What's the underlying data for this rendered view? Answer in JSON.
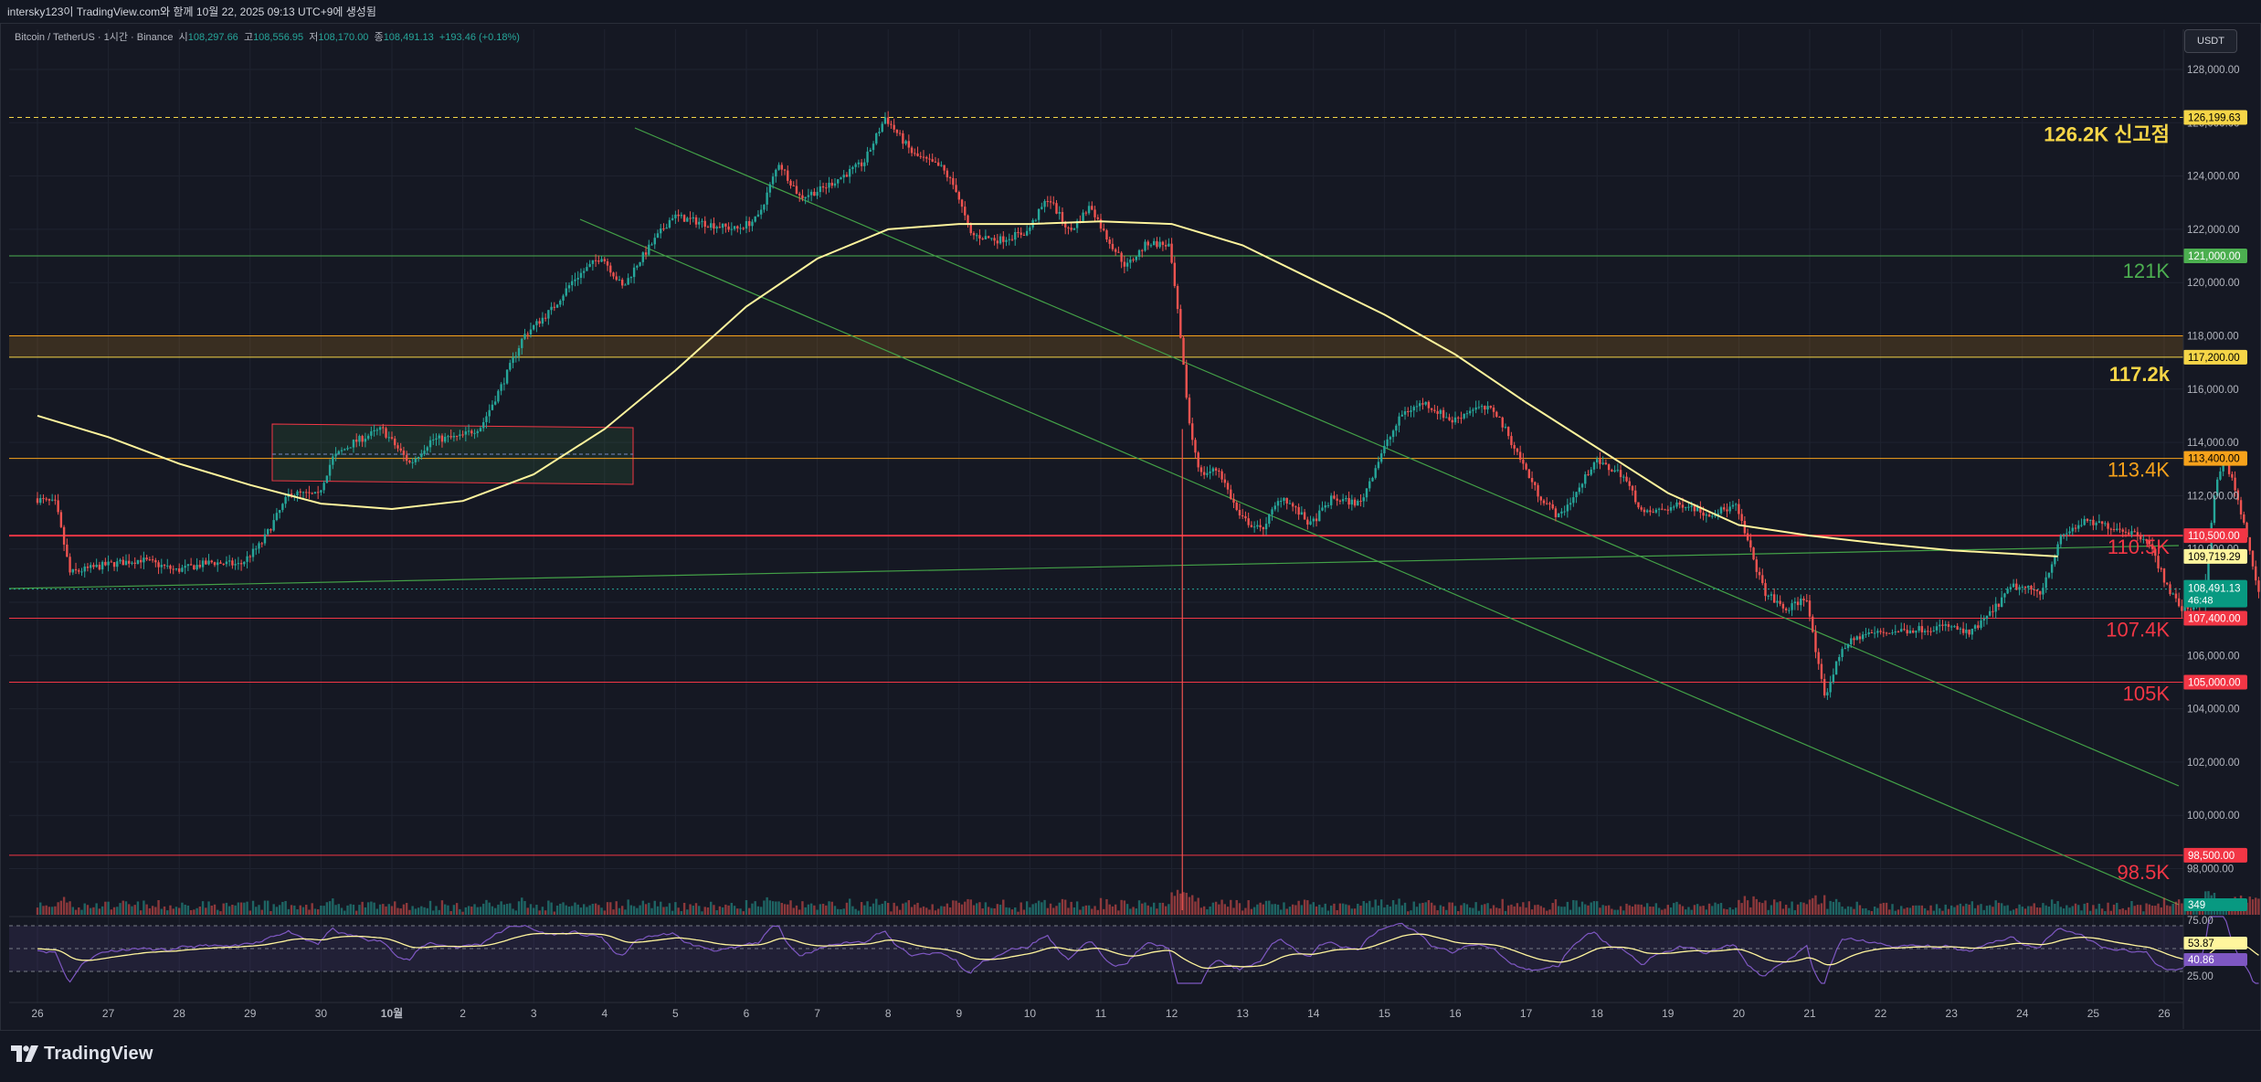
{
  "header": {
    "created_by": "intersky123이 TradingView.com와 함께 10월 22, 2025 09:13 UTC+9에 생성됨"
  },
  "symbol": {
    "pair": "Bitcoin / TetherUS · 1시간 · Binance",
    "open_label": "시",
    "open": "108,297.66",
    "high_label": "고",
    "high": "108,556.95",
    "low_label": "저",
    "low": "108,170.00",
    "close_label": "종",
    "close": "108,491.13",
    "change": "+193.46 (+0.18%)"
  },
  "toolbar": {
    "currency": "USDT"
  },
  "footer": {
    "brand": "TradingView"
  },
  "colors": {
    "background": "#151823",
    "bull": "#26a69a",
    "bear": "#ef5350",
    "ma": "#fff59d",
    "rsi": "#7e57c2",
    "support_red": "#f23645",
    "resistance_orange": "#f7a21b",
    "level_green": "#4caf50",
    "trend_green": "#43a047",
    "ath_yellow": "#f5d547"
  },
  "chart_data": {
    "type": "candlestick",
    "timeframe": "1시간",
    "y_axis": {
      "ticks": [
        "128,000.00",
        "126,000.00",
        "124,000.00",
        "122,000.00",
        "120,000.00",
        "118,000.00",
        "116,000.00",
        "114,000.00",
        "112,000.00",
        "110,000.00",
        "108,000.00",
        "106,000.00",
        "104,000.00",
        "102,000.00",
        "100,000.00",
        "98,000.00"
      ],
      "ylim": [
        97600,
        129200
      ]
    },
    "x_axis": {
      "ticks": [
        "26",
        "27",
        "28",
        "29",
        "30",
        "10월",
        "2",
        "3",
        "4",
        "5",
        "6",
        "7",
        "8",
        "9",
        "10",
        "11",
        "12",
        "13",
        "14",
        "15",
        "16",
        "17",
        "18",
        "19",
        "20",
        "21",
        "22",
        "23",
        "24",
        "25",
        "26"
      ]
    },
    "price_path": [
      {
        "d": 0,
        "v": 111900
      },
      {
        "d": 0.3,
        "v": 111700
      },
      {
        "d": 0.5,
        "v": 109100
      },
      {
        "d": 1,
        "v": 109400
      },
      {
        "d": 1.5,
        "v": 109600
      },
      {
        "d": 2,
        "v": 109200
      },
      {
        "d": 2.5,
        "v": 109500
      },
      {
        "d": 2.9,
        "v": 109400
      },
      {
        "d": 3.2,
        "v": 110200
      },
      {
        "d": 3.6,
        "v": 112100
      },
      {
        "d": 4,
        "v": 112000
      },
      {
        "d": 4.2,
        "v": 113400
      },
      {
        "d": 4.5,
        "v": 114000
      },
      {
        "d": 4.9,
        "v": 114500
      },
      {
        "d": 5.3,
        "v": 113200
      },
      {
        "d": 5.6,
        "v": 114100
      },
      {
        "d": 6,
        "v": 114200
      },
      {
        "d": 6.3,
        "v": 114600
      },
      {
        "d": 6.6,
        "v": 116200
      },
      {
        "d": 6.9,
        "v": 118000
      },
      {
        "d": 7.3,
        "v": 119000
      },
      {
        "d": 7.6,
        "v": 120100
      },
      {
        "d": 8,
        "v": 121000
      },
      {
        "d": 8.3,
        "v": 119800
      },
      {
        "d": 8.5,
        "v": 120700
      },
      {
        "d": 9,
        "v": 122500
      },
      {
        "d": 9.5,
        "v": 122200
      },
      {
        "d": 9.9,
        "v": 122000
      },
      {
        "d": 10.2,
        "v": 122400
      },
      {
        "d": 10.5,
        "v": 124500
      },
      {
        "d": 10.8,
        "v": 123200
      },
      {
        "d": 11.1,
        "v": 123500
      },
      {
        "d": 11.4,
        "v": 124000
      },
      {
        "d": 11.7,
        "v": 124500
      },
      {
        "d": 12,
        "v": 126199
      },
      {
        "d": 12.4,
        "v": 124800
      },
      {
        "d": 12.8,
        "v": 124300
      },
      {
        "d": 13,
        "v": 123500
      },
      {
        "d": 13.2,
        "v": 121800
      },
      {
        "d": 13.6,
        "v": 121600
      },
      {
        "d": 14,
        "v": 121900
      },
      {
        "d": 14.3,
        "v": 123200
      },
      {
        "d": 14.6,
        "v": 121900
      },
      {
        "d": 14.9,
        "v": 122900
      },
      {
        "d": 15.1,
        "v": 121800
      },
      {
        "d": 15.4,
        "v": 120600
      },
      {
        "d": 15.7,
        "v": 121500
      },
      {
        "d": 16,
        "v": 121400
      },
      {
        "d": 16.1,
        "v": 119500
      },
      {
        "d": 16.2,
        "v": 117000
      },
      {
        "d": 16.3,
        "v": 114500
      },
      {
        "d": 16.45,
        "v": 112800
      },
      {
        "d": 16.7,
        "v": 113000
      },
      {
        "d": 17,
        "v": 111200
      },
      {
        "d": 17.3,
        "v": 110700
      },
      {
        "d": 17.6,
        "v": 112000
      },
      {
        "d": 18,
        "v": 110900
      },
      {
        "d": 18.3,
        "v": 111900
      },
      {
        "d": 18.7,
        "v": 111700
      },
      {
        "d": 19,
        "v": 113600
      },
      {
        "d": 19.3,
        "v": 115100
      },
      {
        "d": 19.6,
        "v": 115500
      },
      {
        "d": 20,
        "v": 114800
      },
      {
        "d": 20.3,
        "v": 115300
      },
      {
        "d": 20.6,
        "v": 115200
      },
      {
        "d": 20.9,
        "v": 113700
      },
      {
        "d": 21.2,
        "v": 112100
      },
      {
        "d": 21.5,
        "v": 111200
      },
      {
        "d": 21.8,
        "v": 112300
      },
      {
        "d": 22,
        "v": 113300
      },
      {
        "d": 22.4,
        "v": 112800
      },
      {
        "d": 22.7,
        "v": 111300
      },
      {
        "d": 23,
        "v": 111500
      },
      {
        "d": 23.3,
        "v": 111700
      },
      {
        "d": 23.6,
        "v": 111300
      },
      {
        "d": 24,
        "v": 111600
      },
      {
        "d": 24.2,
        "v": 110000
      },
      {
        "d": 24.4,
        "v": 108400
      },
      {
        "d": 24.7,
        "v": 107700
      },
      {
        "d": 25,
        "v": 108200
      },
      {
        "d": 25.1,
        "v": 106500
      },
      {
        "d": 25.25,
        "v": 104400
      },
      {
        "d": 25.5,
        "v": 106300
      },
      {
        "d": 25.8,
        "v": 106800
      },
      {
        "d": 26.2,
        "v": 106900
      },
      {
        "d": 26.6,
        "v": 107000
      },
      {
        "d": 27,
        "v": 107100
      },
      {
        "d": 27.3,
        "v": 106800
      },
      {
        "d": 27.6,
        "v": 107600
      },
      {
        "d": 27.9,
        "v": 108600
      },
      {
        "d": 28.3,
        "v": 108400
      },
      {
        "d": 28.6,
        "v": 110500
      },
      {
        "d": 28.9,
        "v": 111000
      },
      {
        "d": 29.2,
        "v": 110900
      },
      {
        "d": 29.5,
        "v": 110700
      },
      {
        "d": 29.8,
        "v": 110400
      },
      {
        "d": 30.1,
        "v": 108500
      },
      {
        "d": 30.3,
        "v": 107700
      },
      {
        "d": 30.6,
        "v": 108000
      },
      {
        "d": 30.75,
        "v": 112100
      },
      {
        "d": 30.9,
        "v": 113500
      },
      {
        "d": 31.1,
        "v": 111600
      },
      {
        "d": 31.25,
        "v": 110000
      },
      {
        "d": 31.35,
        "v": 108491
      }
    ],
    "current_price": "108,491.13",
    "countdown": "46:48",
    "ma_value": "109,719.29",
    "volume_value": "349",
    "ma_path": [
      {
        "d": 0,
        "v": 115000
      },
      {
        "d": 1,
        "v": 114200
      },
      {
        "d": 2,
        "v": 113200
      },
      {
        "d": 3,
        "v": 112400
      },
      {
        "d": 4,
        "v": 111700
      },
      {
        "d": 5,
        "v": 111500
      },
      {
        "d": 6,
        "v": 111800
      },
      {
        "d": 7,
        "v": 112800
      },
      {
        "d": 8,
        "v": 114500
      },
      {
        "d": 9,
        "v": 116700
      },
      {
        "d": 10,
        "v": 119100
      },
      {
        "d": 11,
        "v": 120900
      },
      {
        "d": 12,
        "v": 122000
      },
      {
        "d": 13,
        "v": 122200
      },
      {
        "d": 14,
        "v": 122200
      },
      {
        "d": 15,
        "v": 122300
      },
      {
        "d": 16,
        "v": 122200
      },
      {
        "d": 17,
        "v": 121400
      },
      {
        "d": 18,
        "v": 120100
      },
      {
        "d": 19,
        "v": 118800
      },
      {
        "d": 20,
        "v": 117300
      },
      {
        "d": 21,
        "v": 115500
      },
      {
        "d": 22,
        "v": 113800
      },
      {
        "d": 23,
        "v": 112100
      },
      {
        "d": 24,
        "v": 110900
      },
      {
        "d": 25,
        "v": 110500
      },
      {
        "d": 26,
        "v": 110200
      },
      {
        "d": 27,
        "v": 109950
      },
      {
        "d": 28.5,
        "v": 109720
      }
    ],
    "levels": [
      {
        "label": "126.2K 신고점",
        "tag": "126,199.63",
        "value": 126199.63,
        "color": "#f5d547",
        "dashed": true
      },
      {
        "label": "121K",
        "tag": "121,000.00",
        "value": 121000,
        "color": "#4caf50"
      },
      {
        "label": "117.2k",
        "tag": "117,200.00",
        "value": 117200,
        "color": "#f5d547"
      },
      {
        "label": "",
        "tag": "",
        "value": 118000,
        "color": "#f7a21b"
      },
      {
        "label": "113.4K",
        "tag": "113,400.00",
        "value": 113400,
        "color": "#f7a21b"
      },
      {
        "label": "110.5K",
        "tag": "110,500.00",
        "value": 110500,
        "color": "#f23645"
      },
      {
        "label": "107.4K",
        "tag": "107,400.00",
        "value": 107400,
        "color": "#f23645"
      },
      {
        "label": "105K",
        "tag": "105,000.00",
        "value": 105000,
        "color": "#f23645"
      },
      {
        "label": "98.5K",
        "tag": "98,500.00",
        "value": 98500,
        "color": "#f23645"
      }
    ],
    "rsi": {
      "levels": [
        "75.00",
        "25.00"
      ],
      "value_ma": "53.87",
      "value": "40.86"
    }
  }
}
